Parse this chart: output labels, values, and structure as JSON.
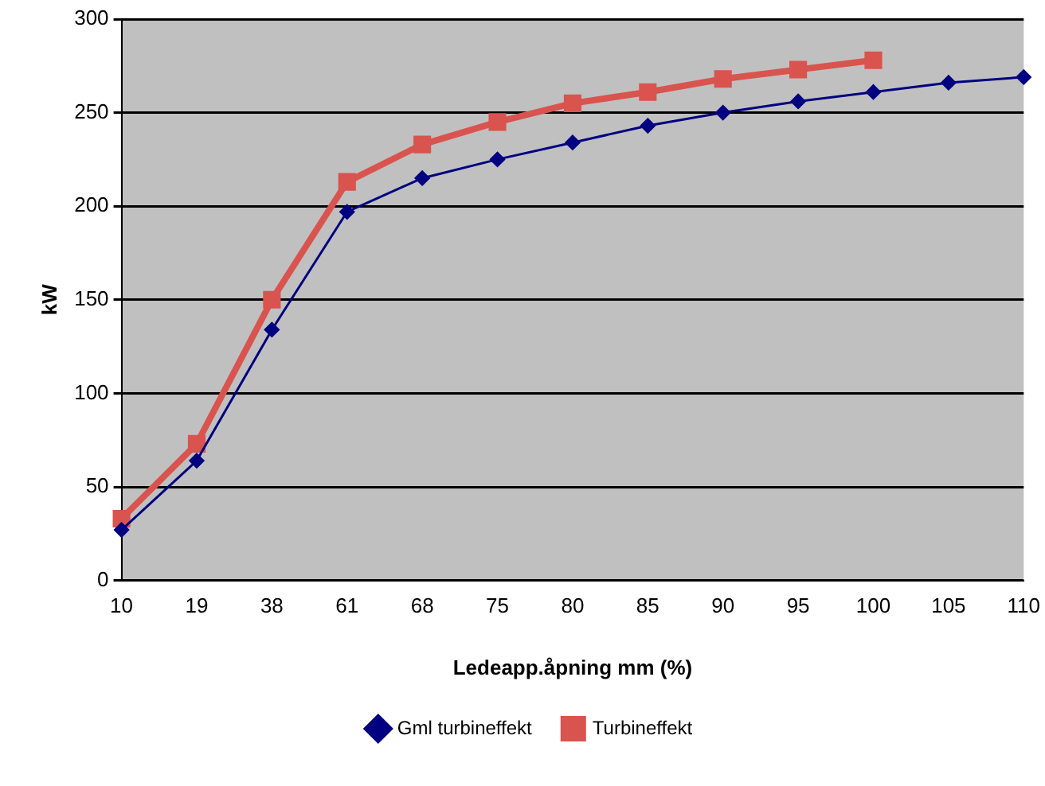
{
  "chart_data": {
    "type": "line",
    "xlabel": "Ledeapp.åpning mm (%)",
    "ylabel": "kW",
    "categories": [
      "10",
      "19",
      "38",
      "61",
      "68",
      "75",
      "80",
      "85",
      "90",
      "95",
      "100",
      "105",
      "110"
    ],
    "series": [
      {
        "name": "Gml turbineffekt",
        "color": "#000080",
        "marker": "diamond",
        "values": [
          27,
          64,
          134,
          197,
          215,
          225,
          234,
          243,
          250,
          256,
          261,
          266,
          269
        ]
      },
      {
        "name": "Turbineffekt",
        "color": "#d9534f",
        "marker": "square",
        "values": [
          33,
          73,
          150,
          213,
          233,
          245,
          255,
          261,
          268,
          273,
          278,
          null,
          null
        ]
      }
    ],
    "ylim": [
      0,
      300
    ],
    "yticks": [
      0,
      50,
      100,
      150,
      200,
      250,
      300
    ],
    "grid": "y",
    "legend": "bottom",
    "line_style": "solid"
  }
}
